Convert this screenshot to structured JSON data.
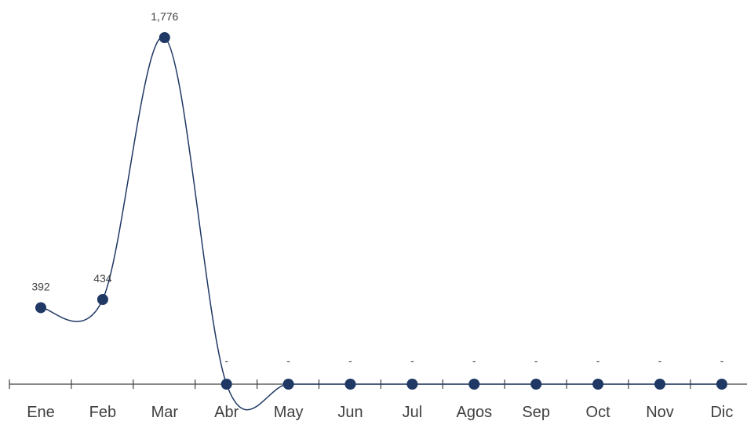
{
  "chart_data": {
    "type": "line",
    "smooth": true,
    "categories": [
      "Ene",
      "Feb",
      "Mar",
      "Abr",
      "May",
      "Jun",
      "Jul",
      "Agos",
      "Sep",
      "Oct",
      "Nov",
      "Dic"
    ],
    "values": [
      392,
      434,
      1776,
      0,
      0,
      0,
      0,
      0,
      0,
      0,
      0,
      0
    ],
    "data_labels": [
      "392",
      "434",
      "1,776",
      "-",
      "-",
      "-",
      "-",
      "-",
      "-",
      "-",
      "-",
      "-"
    ],
    "title": "",
    "xlabel": "",
    "ylabel": "",
    "ylim": [
      0,
      1776
    ],
    "grid": false,
    "legend": "none",
    "colors": {
      "line": "#1f3864",
      "marker": "#1f3864",
      "axis": "#404040",
      "text": "#404040"
    }
  }
}
